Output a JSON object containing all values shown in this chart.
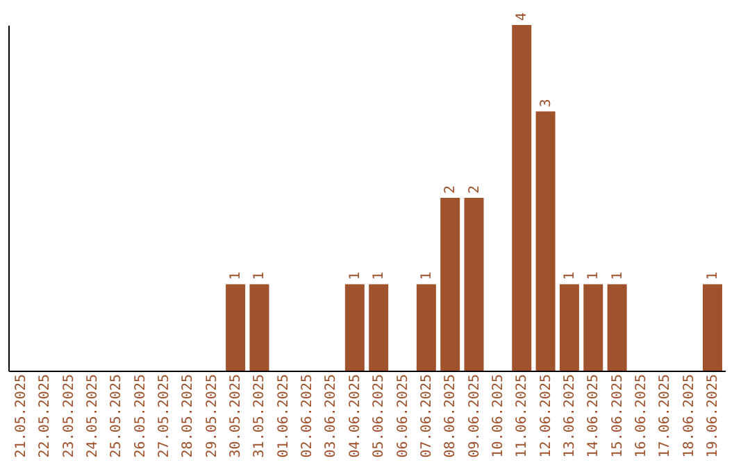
{
  "chart_data": {
    "type": "bar",
    "categories": [
      "21.05.2025",
      "22.05.2025",
      "23.05.2025",
      "24.05.2025",
      "25.05.2025",
      "26.05.2025",
      "27.05.2025",
      "28.05.2025",
      "29.05.2025",
      "30.05.2025",
      "31.05.2025",
      "01.06.2025",
      "02.06.2025",
      "03.06.2025",
      "04.06.2025",
      "05.06.2025",
      "06.06.2025",
      "07.06.2025",
      "08.06.2025",
      "09.06.2025",
      "10.06.2025",
      "11.06.2025",
      "12.06.2025",
      "13.06.2025",
      "14.06.2025",
      "15.06.2025",
      "16.06.2025",
      "17.06.2025",
      "18.06.2025",
      "19.06.2025"
    ],
    "values": [
      0,
      0,
      0,
      0,
      0,
      0,
      0,
      0,
      0,
      1,
      1,
      0,
      0,
      0,
      1,
      1,
      0,
      1,
      2,
      2,
      0,
      4,
      3,
      1,
      1,
      1,
      0,
      0,
      0,
      1
    ],
    "value_labels": [
      null,
      null,
      null,
      null,
      null,
      null,
      null,
      null,
      null,
      "1",
      "1",
      null,
      null,
      null,
      "1",
      "1",
      null,
      "1",
      "2",
      "2",
      null,
      "4",
      "3",
      "1",
      "1",
      "1",
      null,
      null,
      null,
      "1"
    ],
    "color": "#a0522d",
    "ylim": [
      0,
      4
    ],
    "tick_labels": "x",
    "grid": false
  }
}
